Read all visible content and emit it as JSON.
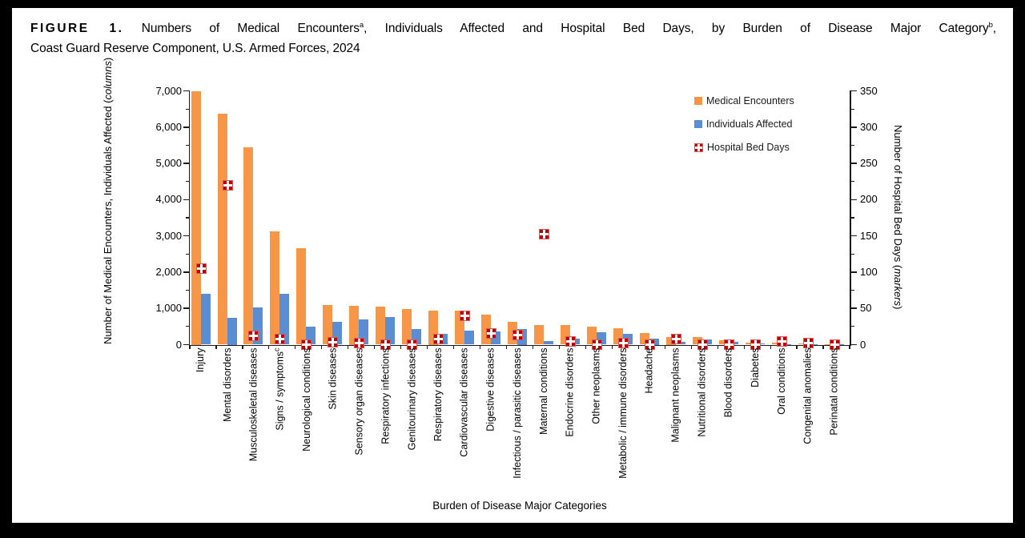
{
  "figure": {
    "title_label": "FIGURE 1.",
    "title_part1": "Numbers of Medical Encounters",
    "title_sup_a": "a",
    "title_part2": ", Individuals Affected and Hospital Bed Days, by Burden of Disease Major Category",
    "title_sup_b": "b",
    "title_part3": ",",
    "title_line2": "Coast Guard Reserve Component, U.S. Armed Forces, 2024"
  },
  "chart_data": {
    "type": "bar",
    "subtype": "grouped columns with secondary-axis markers",
    "categories": [
      {
        "label": "Injury"
      },
      {
        "label": "Mental disorders"
      },
      {
        "label": "Musculoskeletal diseases"
      },
      {
        "label": "Signs / symptoms",
        "sup": "c"
      },
      {
        "label": "Neurological conditions"
      },
      {
        "label": "Skin diseases"
      },
      {
        "label": "Sensory organ diseases"
      },
      {
        "label": "Respiratory infections"
      },
      {
        "label": "Genitourinary diseases"
      },
      {
        "label": "Respiratory diseases"
      },
      {
        "label": "Cardiovascular diseases"
      },
      {
        "label": "Digestive diseases"
      },
      {
        "label": "Infectious / parasitic diseases"
      },
      {
        "label": "Maternal conditions"
      },
      {
        "label": "Endocrine disorders"
      },
      {
        "label": "Other neoplasms"
      },
      {
        "label": "Metabolic / immune disorders"
      },
      {
        "label": "Headache"
      },
      {
        "label": "Malignant neoplasms"
      },
      {
        "label": "Nutritional disorders"
      },
      {
        "label": "Blood disorders"
      },
      {
        "label": "Diabetes"
      },
      {
        "label": "Oral conditions"
      },
      {
        "label": "Congenital anomalies"
      },
      {
        "label": "Perinatal conditions"
      }
    ],
    "series": [
      {
        "name": "Medical Encounters",
        "type": "column",
        "axis": "left",
        "color": "#F79646",
        "values": [
          6990,
          6380,
          5450,
          3130,
          2670,
          1100,
          1070,
          1040,
          990,
          950,
          930,
          820,
          625,
          550,
          535,
          500,
          450,
          330,
          220,
          200,
          125,
          60,
          50,
          30,
          15
        ]
      },
      {
        "name": "Individuals Affected",
        "type": "column",
        "axis": "left",
        "color": "#5B8DD3",
        "values": [
          1400,
          740,
          1020,
          1410,
          490,
          620,
          700,
          770,
          440,
          300,
          380,
          360,
          430,
          90,
          170,
          350,
          300,
          165,
          80,
          150,
          70,
          25,
          18,
          10,
          5
        ]
      },
      {
        "name": "Hospital Bed Days",
        "type": "marker",
        "axis": "right",
        "color": "#C00000",
        "values": [
          105,
          220,
          12,
          8,
          0,
          3,
          2,
          0,
          0,
          8,
          40,
          15,
          13,
          152,
          4,
          0,
          2,
          0,
          8,
          0,
          0,
          0,
          5,
          2,
          0
        ]
      }
    ],
    "left_axis": {
      "title_pre": "Number of Medical Encounters, Individuals Affected (",
      "title_italic": "columns",
      "title_post": ")",
      "min": 0,
      "max": 7000,
      "major_step": 1000,
      "minor_step": 500,
      "tick_labels": [
        "0",
        "1,000",
        "2,000",
        "3,000",
        "4,000",
        "5,000",
        "6,000",
        "7,000"
      ]
    },
    "right_axis": {
      "title_pre": "Number of Hospital Bed Days (",
      "title_italic": "markers",
      "title_post": ")",
      "min": 0,
      "max": 350,
      "major_step": 50,
      "minor_step": 25,
      "tick_labels": [
        "0",
        "50",
        "100",
        "150",
        "200",
        "250",
        "300",
        "350"
      ]
    },
    "x_axis": {
      "title": "Burden of Disease Major Categories"
    },
    "legend": {
      "position": "top-right",
      "items": [
        "Medical Encounters",
        "Individuals Affected",
        "Hospital Bed Days"
      ]
    },
    "grid": "off"
  }
}
